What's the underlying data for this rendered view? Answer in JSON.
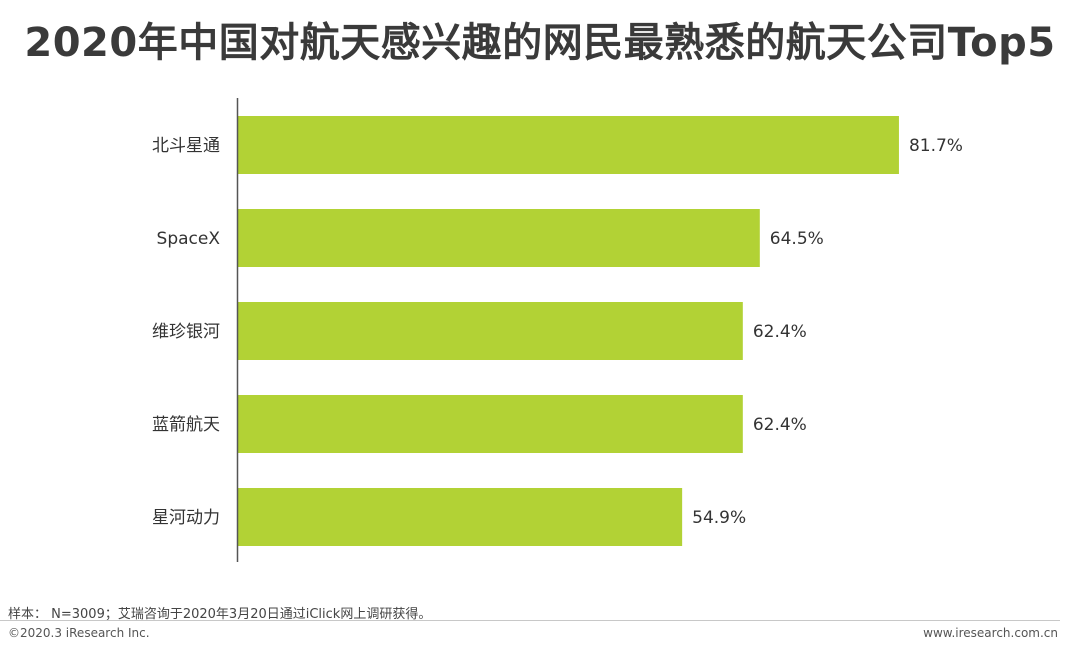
{
  "header": {
    "title": "2020年中国对航天感兴趣的网民最熟悉的航天公司Top5"
  },
  "chart_data": {
    "type": "bar",
    "orientation": "horizontal",
    "title": "2020年中国对航天感兴趣的网民最熟悉的航天公司Top5",
    "categories": [
      "北斗星通",
      "SpaceX",
      "维珍银河",
      "蓝箭航天",
      "星河动力"
    ],
    "values": [
      81.7,
      64.5,
      62.4,
      62.4,
      54.9
    ],
    "value_labels": [
      "81.7%",
      "64.5%",
      "62.4%",
      "62.4%",
      "54.9%"
    ],
    "unit": "%",
    "xlim": [
      0,
      100
    ],
    "grid": false,
    "bar_color": "#b2d235"
  },
  "footer": {
    "note": "样本： N=3009；艾瑞咨询于2020年3月20日通过iClick网上调研获得。",
    "copyright": "©2020.3 iResearch Inc.",
    "website": "www.iresearch.com.cn"
  }
}
